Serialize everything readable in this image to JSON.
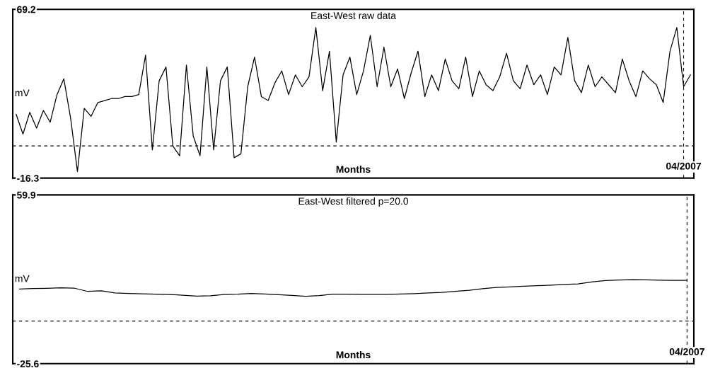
{
  "chart_data": [
    {
      "type": "line",
      "title": "East-West raw data",
      "xlabel": "Months",
      "ylabel": "mV",
      "grid": "y",
      "marker": "none",
      "line_style": "solid",
      "categories": [
        null,
        null,
        null,
        null,
        null,
        null,
        null,
        null,
        null,
        null,
        null,
        null,
        null,
        null,
        null,
        null,
        null,
        null,
        null,
        null,
        null,
        null,
        null,
        null,
        null,
        null,
        null,
        null,
        null,
        null,
        null,
        null,
        null,
        null,
        null,
        null,
        null,
        null,
        null,
        null,
        null,
        null,
        null,
        null,
        null,
        null,
        null,
        null,
        null,
        null,
        null,
        null,
        null,
        null,
        null,
        null,
        null,
        null,
        null,
        null,
        null,
        null,
        null,
        null,
        null,
        null,
        null,
        null,
        null,
        null,
        null,
        null,
        null,
        null,
        null,
        null,
        null,
        null,
        null,
        null,
        null,
        null,
        null,
        null,
        null,
        null,
        null,
        null,
        null,
        null,
        null,
        null,
        null,
        null,
        null,
        null,
        null,
        null,
        "04/2007",
        null
      ],
      "ylim": [
        -16.3,
        69.2
      ],
      "yticks": [
        -16.3,
        {
          "value": 0,
          "label": null
        },
        69.2
      ],
      "ref_lines": [
        {
          "axis": "x",
          "value": "04/2007"
        }
      ],
      "series": [
        {
          "color": "#000000",
          "values": [
            16,
            6,
            17,
            9,
            18,
            12,
            26,
            34,
            14,
            -13,
            19,
            15,
            22,
            23,
            24,
            24,
            25,
            25,
            26,
            46,
            -2,
            33,
            40,
            0,
            -5,
            41,
            5,
            -5,
            40,
            -2,
            33,
            40,
            -6,
            -4,
            30,
            45,
            25,
            23,
            32,
            38,
            26,
            36,
            30,
            35,
            60,
            28,
            48,
            2,
            36,
            45,
            26,
            38,
            56,
            30,
            50,
            30,
            39,
            24,
            37,
            48,
            25,
            36,
            28,
            44,
            33,
            29,
            45,
            25,
            38,
            31,
            28,
            35,
            47,
            33,
            29,
            41,
            31,
            36,
            26,
            40,
            36,
            55,
            33,
            27,
            41,
            30,
            35,
            31,
            27,
            44,
            33,
            25,
            38,
            34,
            31,
            22,
            48,
            60,
            30,
            36
          ]
        }
      ]
    },
    {
      "type": "line",
      "title": "East-West filtered p=20.0",
      "xlabel": "Months",
      "ylabel": "mV",
      "grid": "y",
      "marker": "none",
      "line_style": "solid",
      "categories": [
        null,
        null,
        null,
        null,
        null,
        null,
        null,
        null,
        null,
        null,
        null,
        null,
        null,
        null,
        null,
        null,
        null,
        null,
        null,
        null,
        null,
        null,
        null,
        null,
        null,
        null,
        null,
        null,
        null,
        null,
        null,
        null,
        null,
        null,
        null,
        null,
        null,
        null,
        null,
        null,
        null,
        null,
        null,
        null,
        null,
        null,
        null,
        null,
        null,
        "04/2007"
      ],
      "ylim": [
        -25.6,
        59.9
      ],
      "yticks": [
        -25.6,
        {
          "value": -4,
          "label": null
        },
        59.9
      ],
      "ref_lines": [
        {
          "axis": "x",
          "value": "04/2007"
        }
      ],
      "series": [
        {
          "color": "#000000",
          "values": [
            12.2,
            12.5,
            12.6,
            12.8,
            12.7,
            11.0,
            11.3,
            10.2,
            10.0,
            9.8,
            9.6,
            9.4,
            9.1,
            8.6,
            8.8,
            9.4,
            9.6,
            10.0,
            9.7,
            9.3,
            9.0,
            8.5,
            8.9,
            9.6,
            9.6,
            9.5,
            9.5,
            9.5,
            9.7,
            9.9,
            10.2,
            10.5,
            11.0,
            11.6,
            12.4,
            13.0,
            13.3,
            13.6,
            13.9,
            14.2,
            14.5,
            14.8,
            15.8,
            16.5,
            16.8,
            17.0,
            16.9,
            16.7,
            16.6,
            16.6
          ]
        }
      ]
    }
  ]
}
